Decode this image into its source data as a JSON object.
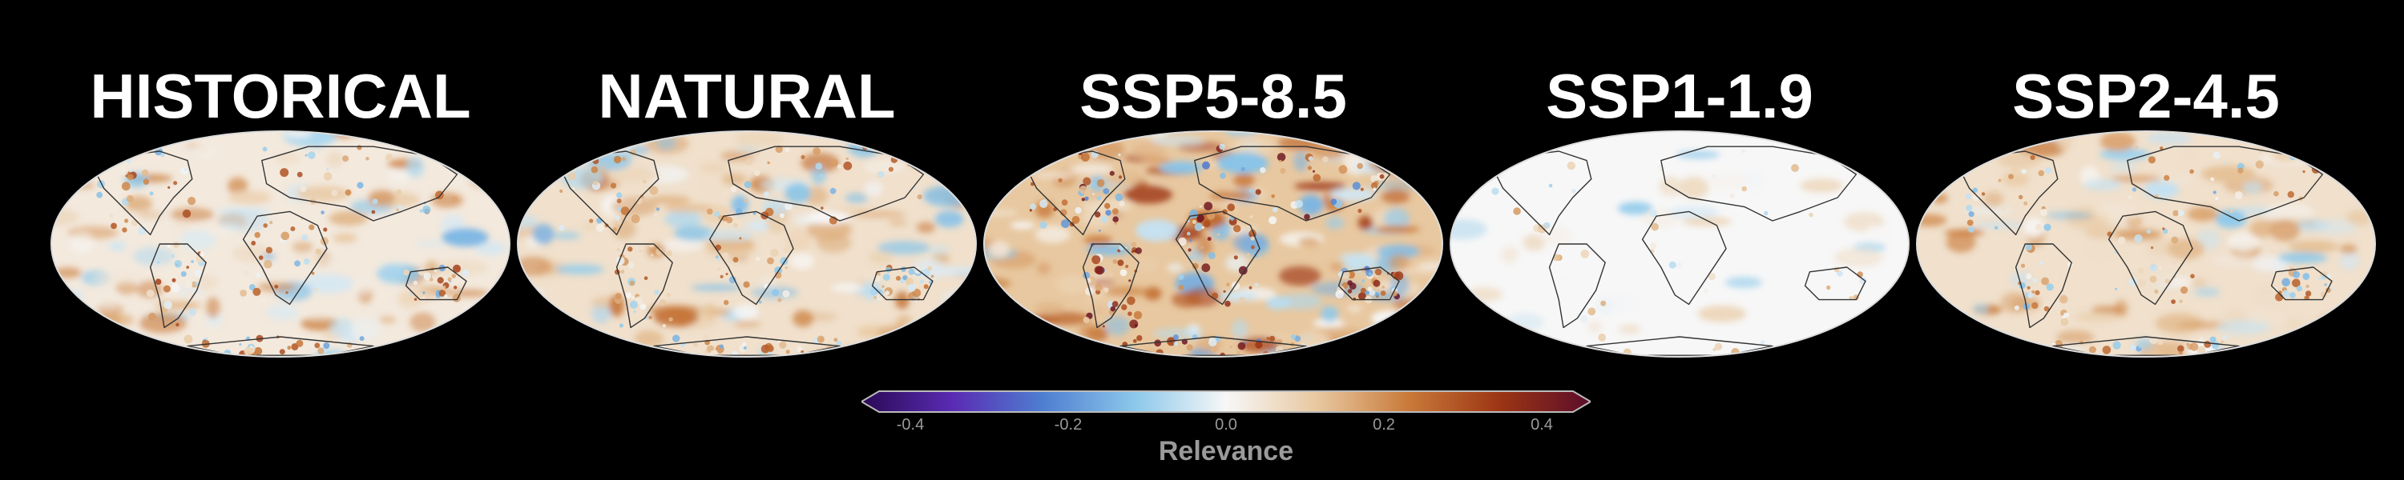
{
  "panels": [
    {
      "title": "HISTORICAL",
      "style": "historical"
    },
    {
      "title": "NATURAL",
      "style": "natural"
    },
    {
      "title": "SSP5-8.5",
      "style": "ssp585"
    },
    {
      "title": "SSP1-1.9",
      "style": "ssp119"
    },
    {
      "title": "SSP2-4.5",
      "style": "ssp245"
    }
  ],
  "colorbar": {
    "label": "Relevance",
    "ticks": [
      "-0.4",
      "-0.2",
      "0.0",
      "0.2",
      "0.4"
    ],
    "range": [
      -0.4,
      0.4
    ],
    "colors": [
      "#2a0a55",
      "#5a2bb3",
      "#4e7fd1",
      "#8cc8ea",
      "#f7f7f7",
      "#e8c8a0",
      "#c97a3a",
      "#9c3514",
      "#5b0d2a"
    ]
  }
}
